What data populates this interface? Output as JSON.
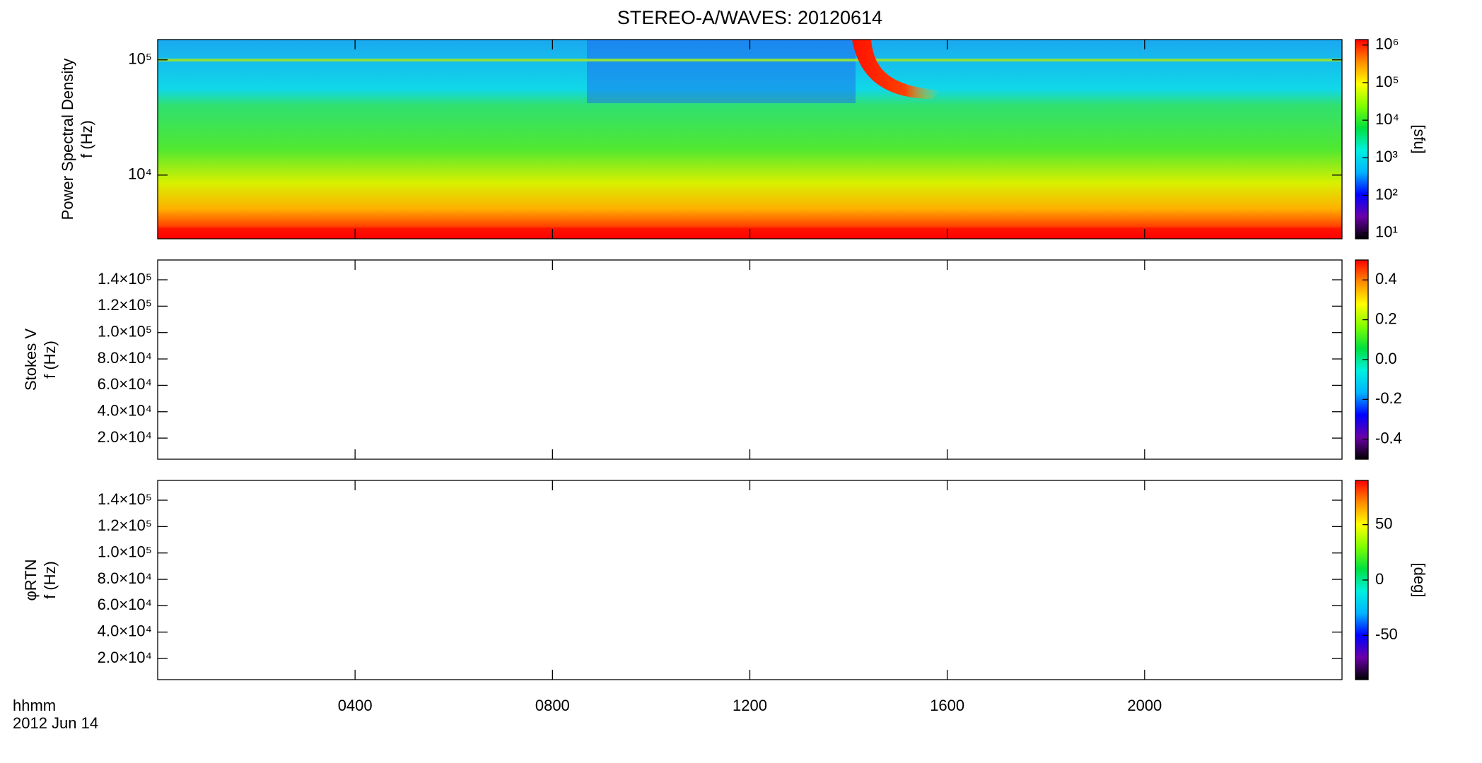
{
  "chart_data": [
    {
      "type": "spectrogram",
      "title": "STEREO-A/WAVES: 20120614",
      "ylabel": [
        "Power Spectral Density",
        "f (Hz)"
      ],
      "log_y": true,
      "ylim": [
        2800,
        150000
      ],
      "yticks": [
        {
          "value": 10000,
          "label": "10⁴"
        },
        {
          "value": 100000,
          "label": "10⁵"
        }
      ],
      "colorbar_label": "[sfu]",
      "log_c": true,
      "clim": [
        7,
        1400000
      ],
      "cticks": [
        {
          "value": 10,
          "label": "10¹"
        },
        {
          "value": 100,
          "label": "10²"
        },
        {
          "value": 1000,
          "label": "10³"
        },
        {
          "value": 10000,
          "label": "10⁴"
        },
        {
          "value": 100000,
          "label": "10⁵"
        },
        {
          "value": 1000000,
          "label": "10⁶"
        }
      ],
      "colormap": [
        "#000000",
        "#6a00a8",
        "#0000ff",
        "#00b4ff",
        "#00f0e0",
        "#00e040",
        "#80ff00",
        "#ffff00",
        "#ff8c00",
        "#ff0000"
      ]
    },
    {
      "type": "spectrogram",
      "ylabel": [
        "Stokes V",
        "f (Hz)"
      ],
      "log_y": false,
      "ylim": [
        4000,
        155000
      ],
      "yticks": [
        {
          "value": 20000,
          "label": "2.0×10⁴"
        },
        {
          "value": 40000,
          "label": "4.0×10⁴"
        },
        {
          "value": 60000,
          "label": "6.0×10⁴"
        },
        {
          "value": 80000,
          "label": "8.0×10⁴"
        },
        {
          "value": 100000,
          "label": "1.0×10⁵"
        },
        {
          "value": 120000,
          "label": "1.2×10⁵"
        },
        {
          "value": 140000,
          "label": "1.4×10⁵"
        }
      ],
      "log_c": false,
      "clim": [
        -0.5,
        0.5
      ],
      "cticks": [
        -0.4,
        -0.2,
        {
          "value": 0,
          "label": "0.0"
        },
        0.2,
        0.4
      ],
      "colormap": [
        "#000000",
        "#6a00a8",
        "#0000ff",
        "#00b4ff",
        "#00f0e0",
        "#00e040",
        "#80ff00",
        "#ffff00",
        "#ff8c00",
        "#ff0000"
      ]
    },
    {
      "type": "spectrogram",
      "ylabel": [
        "φRTN",
        "f (Hz)"
      ],
      "log_y": false,
      "ylim": [
        4000,
        155000
      ],
      "yticks": [
        {
          "value": 20000,
          "label": "2.0×10⁴"
        },
        {
          "value": 40000,
          "label": "4.0×10⁴"
        },
        {
          "value": 60000,
          "label": "6.0×10⁴"
        },
        {
          "value": 80000,
          "label": "8.0×10⁴"
        },
        {
          "value": 100000,
          "label": "1.0×10⁵"
        },
        {
          "value": 120000,
          "label": "1.2×10⁵"
        },
        {
          "value": 140000,
          "label": "1.4×10⁵"
        }
      ],
      "colorbar_label": "[deg]",
      "log_c": false,
      "clim": [
        -90,
        90
      ],
      "cticks": [
        -50,
        0,
        50
      ],
      "colormap": [
        "#000000",
        "#6a00a8",
        "#0000ff",
        "#00b4ff",
        "#00f0e0",
        "#00e040",
        "#80ff00",
        "#ffff00",
        "#ff8c00",
        "#ff0000"
      ],
      "xlabel": "hhmm",
      "date": "2012 Jun 14",
      "xlim": [
        0,
        24
      ],
      "xticks": [
        {
          "value": 4,
          "label": "0400"
        },
        {
          "value": 8,
          "label": "0800"
        },
        {
          "value": 12,
          "label": "1200"
        },
        {
          "value": 16,
          "label": "1600"
        },
        {
          "value": 20,
          "label": "2000"
        }
      ]
    }
  ]
}
